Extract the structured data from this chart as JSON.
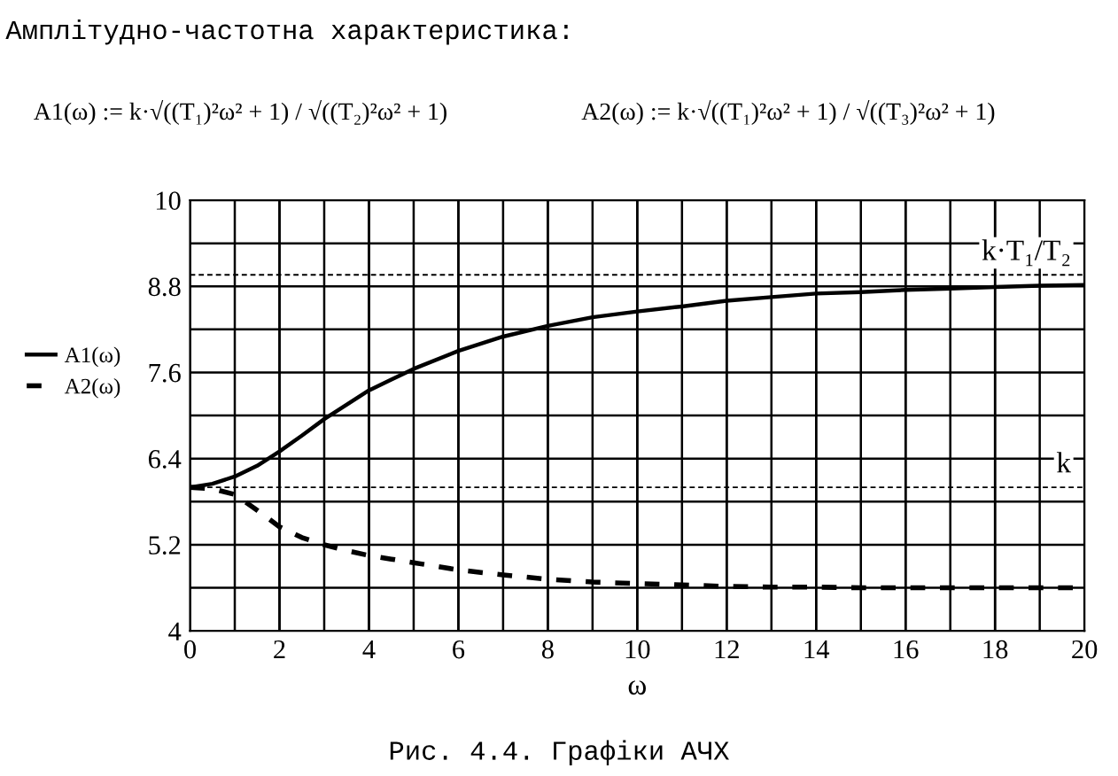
{
  "chart_data": {
    "type": "line",
    "title": "Амплітудно-частотна характеристика:",
    "xlabel": "ω",
    "annotations": [
      "A1(ω) := k·√((T₁)²ω² + 1) / √((T₂)²ω² + 1)",
      "A2(ω) := k·√((T₁)²ω² + 1) / √((T₃)²ω² + 1)",
      "Рис. 4.4. Графіки АЧХ"
    ],
    "x": [
      0,
      0.5,
      1,
      1.5,
      2,
      2.5,
      3,
      3.5,
      4,
      4.5,
      5,
      6,
      7,
      8,
      9,
      10,
      11,
      12,
      13,
      14,
      15,
      16,
      17,
      18,
      19,
      20
    ],
    "series": [
      {
        "name": "A1(ω)",
        "color": "#000000",
        "line_style": "solid",
        "values": [
          6.0,
          6.05,
          6.15,
          6.3,
          6.5,
          6.72,
          6.95,
          7.15,
          7.35,
          7.5,
          7.65,
          7.9,
          8.1,
          8.25,
          8.37,
          8.45,
          8.52,
          8.6,
          8.65,
          8.7,
          8.72,
          8.75,
          8.77,
          8.79,
          8.81,
          8.82
        ]
      },
      {
        "name": "A2(ω)",
        "color": "#000000",
        "line_style": "dashed",
        "values": [
          6.0,
          5.98,
          5.9,
          5.68,
          5.45,
          5.3,
          5.2,
          5.12,
          5.05,
          5.0,
          4.95,
          4.85,
          4.78,
          4.72,
          4.68,
          4.66,
          4.64,
          4.62,
          4.61,
          4.61,
          4.6,
          4.6,
          4.6,
          4.6,
          4.6,
          4.6
        ]
      }
    ],
    "ref_lines": [
      {
        "axis": "y",
        "value": 8.96,
        "label": "k·T₁/T₂",
        "line_style": "dashed"
      },
      {
        "axis": "y",
        "value": 6.0,
        "label": "k",
        "line_style": "dashed"
      }
    ],
    "xlim": [
      0,
      20
    ],
    "xticks": [
      0,
      2,
      4,
      6,
      8,
      10,
      12,
      14,
      16,
      18,
      20
    ],
    "ylim": [
      4,
      10
    ],
    "yticks": [
      4,
      {
        "value": 4.6,
        "label": null
      },
      5.2,
      {
        "value": 5.8,
        "label": null
      },
      6.4,
      {
        "value": 7.0,
        "label": null
      },
      7.6,
      {
        "value": 8.2,
        "label": null
      },
      8.8,
      {
        "value": 9.4,
        "label": null
      },
      10
    ],
    "grid": true,
    "legend": "left"
  }
}
